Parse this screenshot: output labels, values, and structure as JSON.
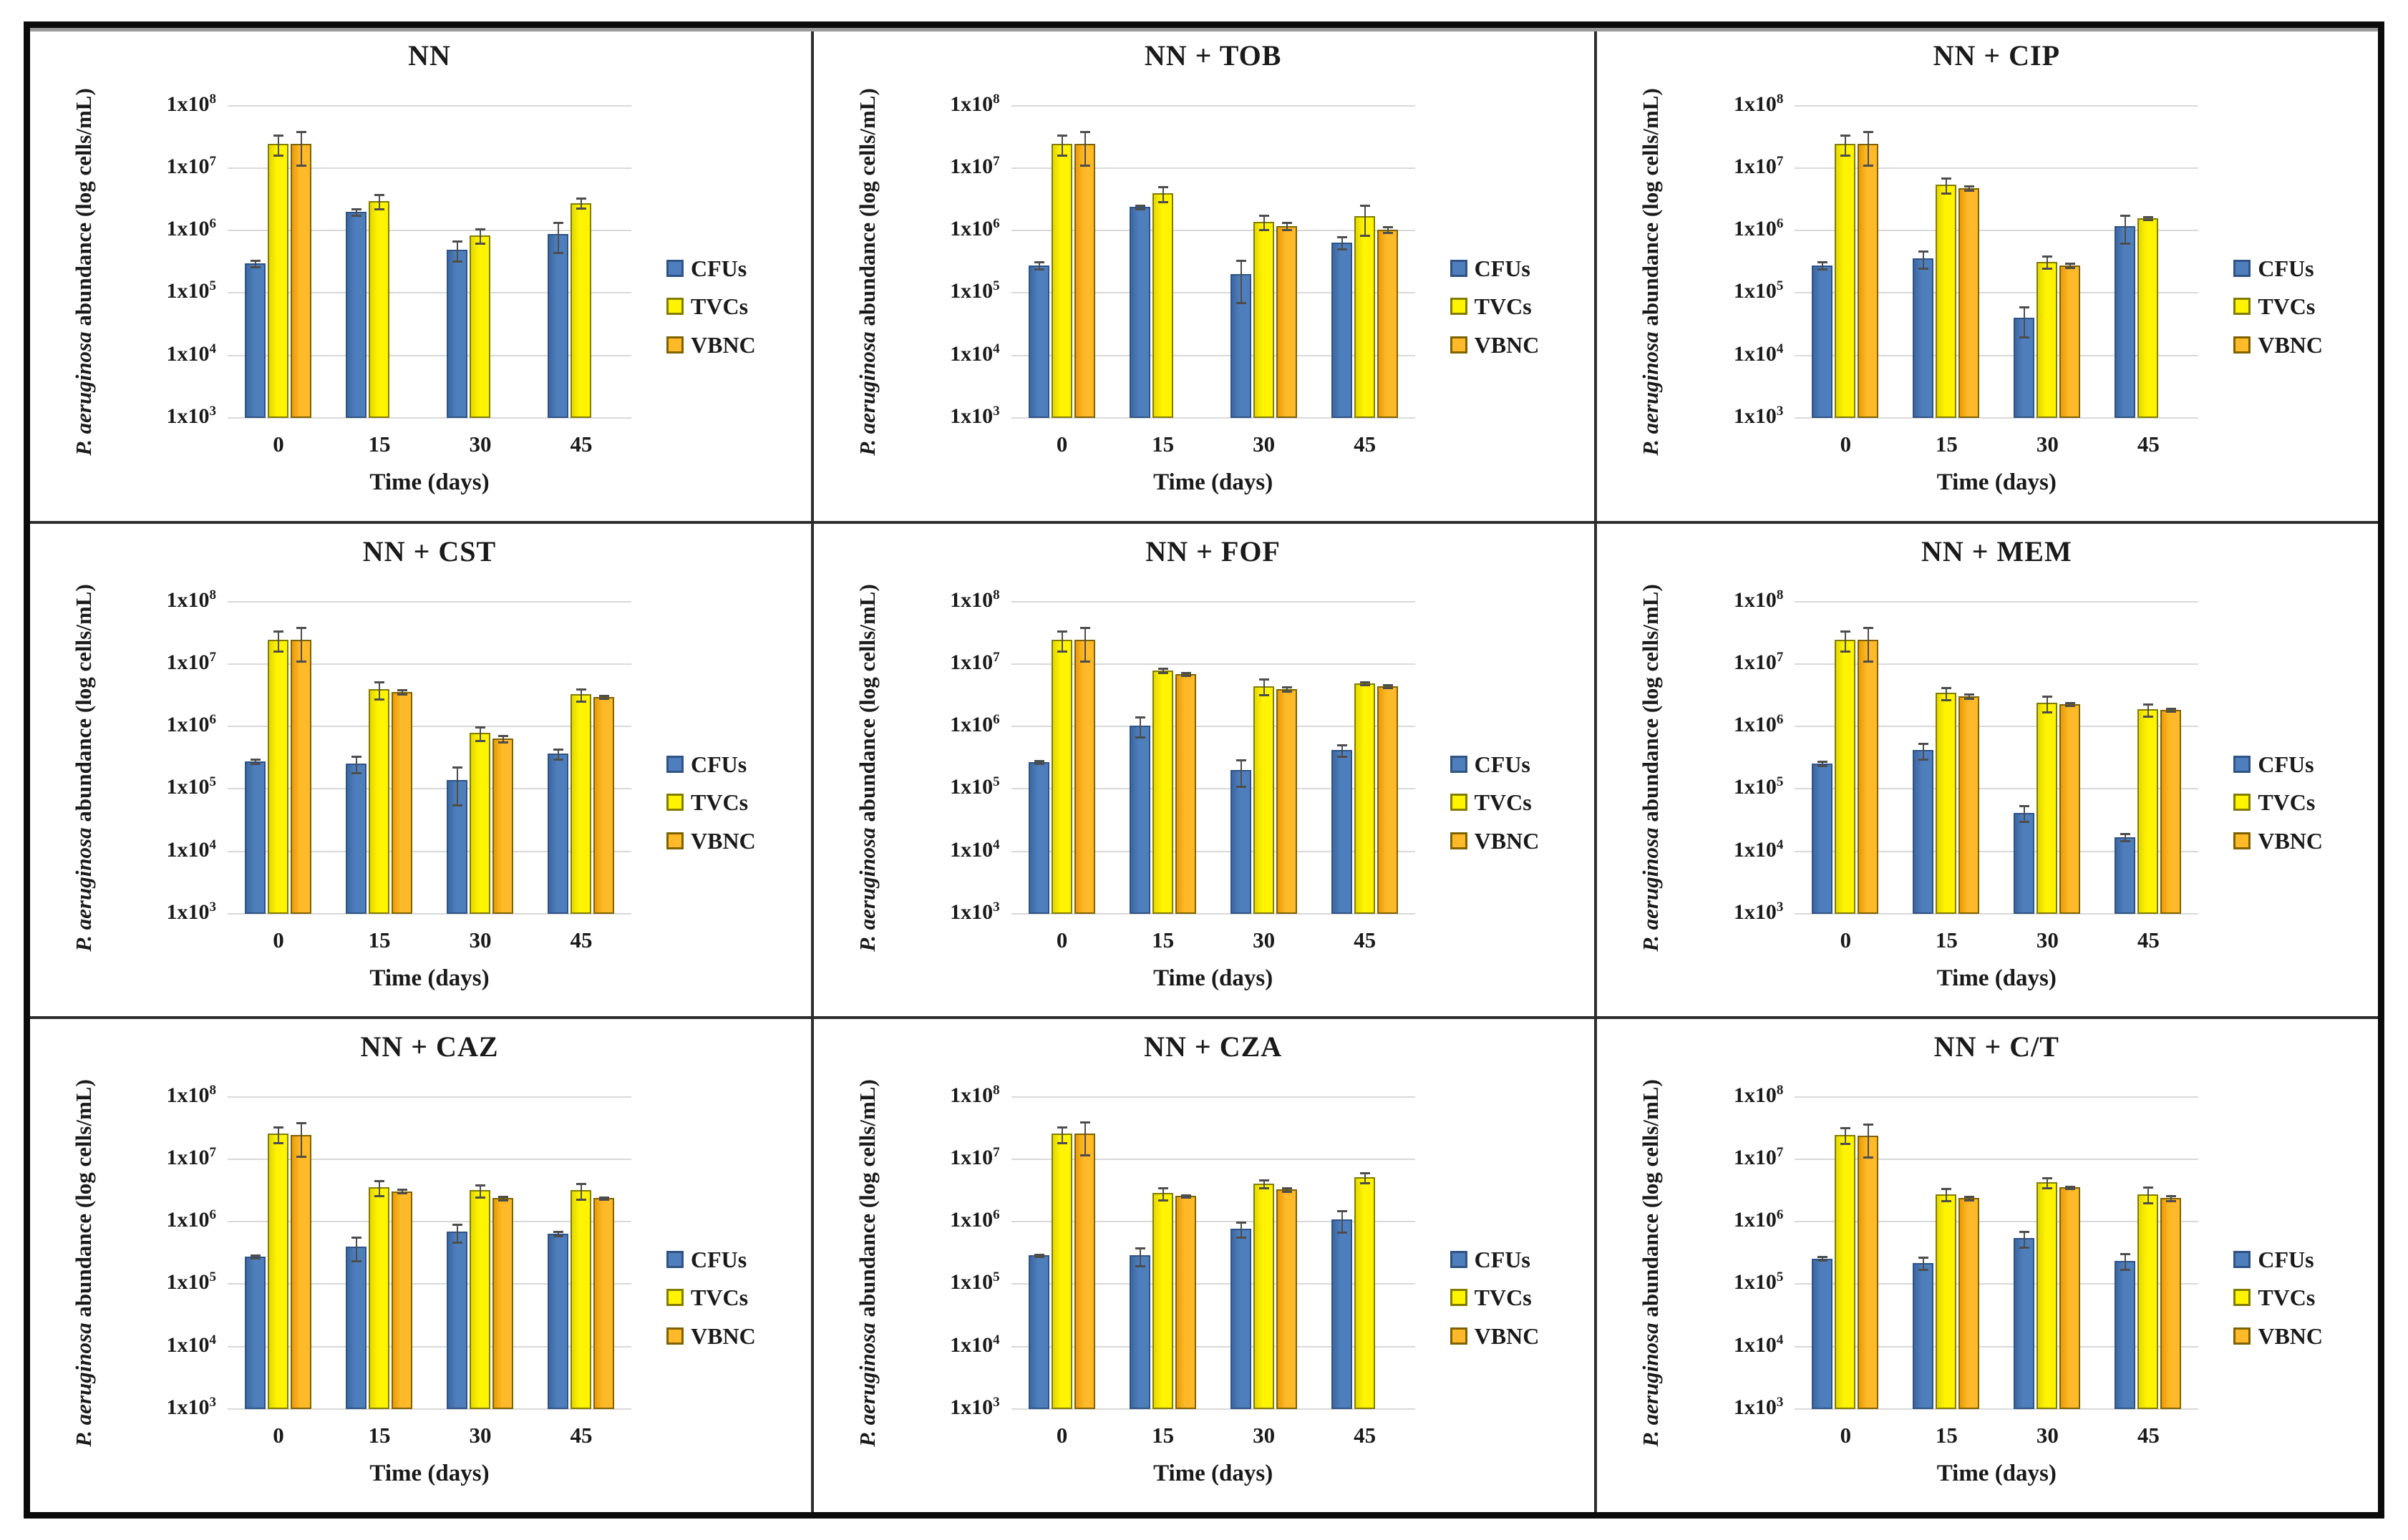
{
  "figure": {
    "y_axis_label_italic": "P. aeruginosa",
    "y_axis_label_rest": " abundance (log cells/mL)",
    "x_axis_label": "Time (days)",
    "x_ticks": [
      "0",
      "15",
      "30",
      "45"
    ],
    "y_tick_base": "1x10",
    "y_tick_exponents": [
      8,
      7,
      6,
      5,
      4,
      3
    ],
    "legend_labels": [
      "CFUs",
      "TVCs",
      "VBNC"
    ],
    "colors": {
      "gridline": "#D9D9D9",
      "error_bar": "#4D4D4D",
      "panel_divider": "#2E2E2E",
      "outer_frame": "#0B0B0B",
      "frame_shadow": "#9B9B9B",
      "text": "#1A1A1A",
      "background": "#FFFFFF"
    },
    "series_styles": {
      "CFUs": {
        "fill": "#4E7FBC",
        "fill_dark": "#3C67A2",
        "border": "#2E5386"
      },
      "TVCs": {
        "fill": "#FFF400",
        "fill_dark": "#E3D800",
        "border": "#827D00"
      },
      "VBNC": {
        "fill": "#FFB929",
        "fill_dark": "#E89C06",
        "border": "#7F6300"
      }
    }
  },
  "chart_data": [
    {
      "type": "bar",
      "title": "NN",
      "categories": [
        0,
        15,
        30,
        45
      ],
      "xlabel": "Time (days)",
      "ylabel": "P. aeruginosa abundance (log cells/mL)",
      "log_scale": true,
      "ylim": [
        1000,
        100000000
      ],
      "series": [
        {
          "name": "CFUs",
          "values": [
            300000,
            2000000,
            500000,
            900000
          ],
          "err": [
            0.12,
            0.12,
            0.35,
            0.5
          ]
        },
        {
          "name": "TVCs",
          "values": [
            25000000,
            3000000,
            850000,
            2800000
          ],
          "err": [
            0.35,
            0.25,
            0.25,
            0.18
          ]
        },
        {
          "name": "VBNC",
          "values": [
            25000000,
            null,
            null,
            null
          ],
          "err": [
            0.55,
            null,
            null,
            null
          ]
        }
      ]
    },
    {
      "type": "bar",
      "title": "NN + TOB",
      "categories": [
        0,
        15,
        30,
        45
      ],
      "xlabel": "Time (days)",
      "ylabel": "P. aeruginosa abundance (log cells/mL)",
      "log_scale": true,
      "ylim": [
        1000,
        100000000
      ],
      "series": [
        {
          "name": "CFUs",
          "values": [
            280000,
            2400000,
            200000,
            650000
          ],
          "err": [
            0.12,
            0.06,
            0.65,
            0.22
          ]
        },
        {
          "name": "TVCs",
          "values": [
            25000000,
            4000000,
            1400000,
            1700000
          ],
          "err": [
            0.35,
            0.28,
            0.25,
            0.5
          ]
        },
        {
          "name": "VBNC",
          "values": [
            25000000,
            null,
            1200000,
            1050000
          ],
          "err": [
            0.55,
            null,
            0.14,
            0.1
          ]
        }
      ]
    },
    {
      "type": "bar",
      "title": "NN + CIP",
      "categories": [
        0,
        15,
        30,
        45
      ],
      "xlabel": "Time (days)",
      "ylabel": "P. aeruginosa abundance (log cells/mL)",
      "log_scale": true,
      "ylim": [
        1000,
        100000000
      ],
      "series": [
        {
          "name": "CFUs",
          "values": [
            280000,
            360000,
            40000,
            1200000
          ],
          "err": [
            0.12,
            0.3,
            0.5,
            0.48
          ]
        },
        {
          "name": "TVCs",
          "values": [
            25000000,
            5500000,
            320000,
            1600000
          ],
          "err": [
            0.35,
            0.28,
            0.22,
            0.06
          ]
        },
        {
          "name": "VBNC",
          "values": [
            25000000,
            4800000,
            280000,
            null
          ],
          "err": [
            0.55,
            0.08,
            0.08,
            null
          ]
        }
      ]
    },
    {
      "type": "bar",
      "title": "NN + CST",
      "categories": [
        0,
        15,
        30,
        45
      ],
      "xlabel": "Time (days)",
      "ylabel": "P. aeruginosa abundance (log cells/mL)",
      "log_scale": true,
      "ylim": [
        1000,
        100000000
      ],
      "series": [
        {
          "name": "CFUs",
          "values": [
            280000,
            260000,
            140000,
            370000
          ],
          "err": [
            0.08,
            0.3,
            0.6,
            0.18
          ]
        },
        {
          "name": "TVCs",
          "values": [
            25000000,
            4000000,
            800000,
            3300000
          ],
          "err": [
            0.35,
            0.3,
            0.25,
            0.22
          ]
        },
        {
          "name": "VBNC",
          "values": [
            25000000,
            3600000,
            650000,
            3000000
          ],
          "err": [
            0.55,
            0.08,
            0.12,
            0.06
          ]
        }
      ]
    },
    {
      "type": "bar",
      "title": "NN + FOF",
      "categories": [
        0,
        15,
        30,
        45
      ],
      "xlabel": "Time (days)",
      "ylabel": "P. aeruginosa abundance (log cells/mL)",
      "log_scale": true,
      "ylim": [
        1000,
        100000000
      ],
      "series": [
        {
          "name": "CFUs",
          "values": [
            270000,
            1050000,
            200000,
            420000
          ],
          "err": [
            0.06,
            0.35,
            0.45,
            0.2
          ]
        },
        {
          "name": "TVCs",
          "values": [
            25000000,
            8000000,
            4500000,
            5000000
          ],
          "err": [
            0.35,
            0.08,
            0.28,
            0.05
          ]
        },
        {
          "name": "VBNC",
          "values": [
            25000000,
            7000000,
            4000000,
            4500000
          ],
          "err": [
            0.55,
            0.06,
            0.08,
            0.05
          ]
        }
      ]
    },
    {
      "type": "bar",
      "title": "NN + MEM",
      "categories": [
        0,
        15,
        30,
        45
      ],
      "xlabel": "Time (days)",
      "ylabel": "P. aeruginosa abundance (log cells/mL)",
      "log_scale": true,
      "ylim": [
        1000,
        100000000
      ],
      "series": [
        {
          "name": "CFUs",
          "values": [
            260000,
            420000,
            42000,
            17000
          ],
          "err": [
            0.08,
            0.28,
            0.28,
            0.12
          ]
        },
        {
          "name": "TVCs",
          "values": [
            25000000,
            3500000,
            2400000,
            1900000
          ],
          "err": [
            0.35,
            0.22,
            0.28,
            0.22
          ]
        },
        {
          "name": "VBNC",
          "values": [
            25000000,
            3100000,
            2300000,
            1850000
          ],
          "err": [
            0.55,
            0.08,
            0.06,
            0.05
          ]
        }
      ]
    },
    {
      "type": "bar",
      "title": "NN + CAZ",
      "categories": [
        0,
        15,
        30,
        45
      ],
      "xlabel": "Time (days)",
      "ylabel": "P. aeruginosa abundance (log cells/mL)",
      "log_scale": true,
      "ylim": [
        1000,
        100000000
      ],
      "series": [
        {
          "name": "CFUs",
          "values": [
            280000,
            400000,
            700000,
            650000
          ],
          "err": [
            0.06,
            0.4,
            0.32,
            0.08
          ]
        },
        {
          "name": "TVCs",
          "values": [
            26000000,
            3600000,
            3200000,
            3200000
          ],
          "err": [
            0.28,
            0.28,
            0.22,
            0.28
          ]
        },
        {
          "name": "VBNC",
          "values": [
            25000000,
            3100000,
            2400000,
            2400000
          ],
          "err": [
            0.55,
            0.06,
            0.06,
            0.05
          ]
        }
      ]
    },
    {
      "type": "bar",
      "title": "NN + CZA",
      "categories": [
        0,
        15,
        30,
        45
      ],
      "xlabel": "Time (days)",
      "ylabel": "P. aeruginosa abundance (log cells/mL)",
      "log_scale": true,
      "ylim": [
        1000,
        100000000
      ],
      "series": [
        {
          "name": "CFUs",
          "values": [
            290000,
            290000,
            780000,
            1100000
          ],
          "err": [
            0.05,
            0.32,
            0.28,
            0.38
          ]
        },
        {
          "name": "TVCs",
          "values": [
            26000000,
            2900000,
            4100000,
            5200000
          ],
          "err": [
            0.28,
            0.22,
            0.14,
            0.18
          ]
        },
        {
          "name": "VBNC",
          "values": [
            26000000,
            2600000,
            3300000,
            null
          ],
          "err": [
            0.55,
            0.04,
            0.06,
            null
          ]
        }
      ]
    },
    {
      "type": "bar",
      "title": "NN + C/T",
      "categories": [
        0,
        15,
        30,
        45
      ],
      "xlabel": "Time (days)",
      "ylabel": "P. aeruginosa abundance (log cells/mL)",
      "log_scale": true,
      "ylim": [
        1000,
        100000000
      ],
      "series": [
        {
          "name": "CFUs",
          "values": [
            260000,
            220000,
            550000,
            240000
          ],
          "err": [
            0.06,
            0.22,
            0.28,
            0.28
          ]
        },
        {
          "name": "TVCs",
          "values": [
            25000000,
            2800000,
            4300000,
            2800000
          ],
          "err": [
            0.28,
            0.22,
            0.18,
            0.28
          ]
        },
        {
          "name": "VBNC",
          "values": [
            24000000,
            2400000,
            3600000,
            2400000
          ],
          "err": [
            0.55,
            0.06,
            0.04,
            0.08
          ]
        }
      ]
    }
  ]
}
